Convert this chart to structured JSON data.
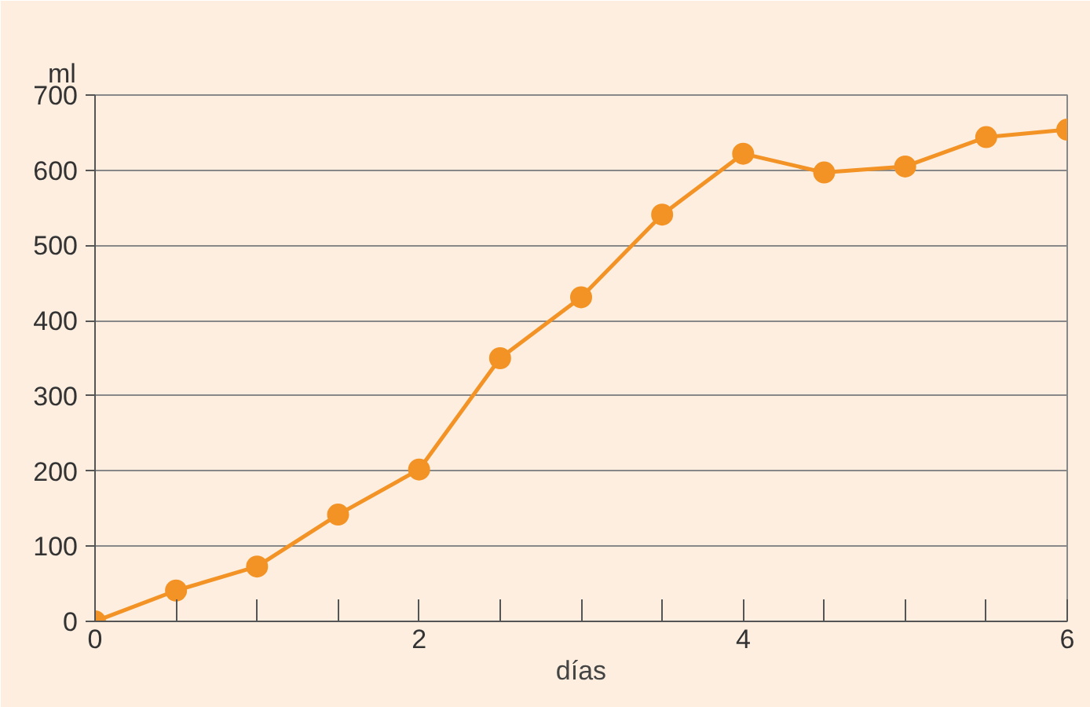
{
  "chart_data": {
    "type": "line",
    "xlabel": "días",
    "ylabel": "ml",
    "x": [
      0,
      0.5,
      1,
      1.5,
      2,
      2.5,
      3,
      3.5,
      4,
      4.5,
      5,
      5.5,
      6
    ],
    "series": [
      {
        "color": "#f39325",
        "values": [
          0,
          41,
          73,
          142,
          202,
          350,
          431,
          541,
          622,
          597,
          605,
          644,
          654
        ]
      }
    ],
    "xlim": [
      0,
      6
    ],
    "xticks": [
      0,
      {
        "value": 0.5,
        "label": null
      },
      2,
      {
        "value": 1,
        "label": null
      },
      {
        "value": 1.5,
        "label": null
      },
      {
        "value": 2.5,
        "label": null
      },
      {
        "value": 3,
        "label": null
      },
      {
        "value": 3.5,
        "label": null
      },
      4,
      {
        "value": 4.5,
        "label": null
      },
      {
        "value": 5,
        "label": null
      },
      {
        "value": 5.5,
        "label": null
      },
      6
    ],
    "ylim": [
      0,
      700
    ],
    "yticks": [
      0,
      100,
      200,
      300,
      400,
      500,
      600,
      700
    ],
    "grid": "y",
    "marker": "circle",
    "line_style": "solid"
  }
}
